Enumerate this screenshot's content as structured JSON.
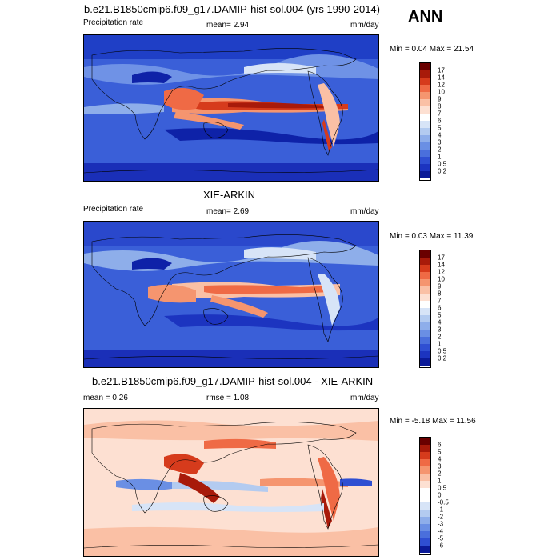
{
  "season": "ANN",
  "panels": [
    {
      "title": "b.e21.B1850cmip6.f09_g17.DAMIP-hist-sol.004 (yrs 1990-2014)",
      "left_label": "Precipitation rate",
      "stat_text": "mean=   2.94",
      "units": "mm/day",
      "minmax": "Min =   0.04 Max =  21.54",
      "levels": [
        "17",
        "14",
        "12",
        "10",
        "9",
        "8",
        "7",
        "6",
        "5",
        "4",
        "3",
        "2",
        "1",
        "0.5",
        "0.2"
      ],
      "colors": [
        "#6a0000",
        "#a81a0a",
        "#d63b1c",
        "#ef6a45",
        "#f5956f",
        "#fac0a5",
        "#fde0d2",
        "#ffffff",
        "#d7e4f7",
        "#b3cbf0",
        "#8eaeea",
        "#6a8fe4",
        "#4a6fdc",
        "#2f4fd2",
        "#1c34c0",
        "#0b1a98"
      ]
    },
    {
      "title": "XIE-ARKIN",
      "left_label": "Precipitation rate",
      "stat_text": "mean=   2.69",
      "units": "mm/day",
      "minmax": "Min =   0.03 Max =  11.39",
      "levels": [
        "17",
        "14",
        "12",
        "10",
        "9",
        "8",
        "7",
        "6",
        "5",
        "4",
        "3",
        "2",
        "1",
        "0.5",
        "0.2"
      ],
      "colors": [
        "#6a0000",
        "#a81a0a",
        "#d63b1c",
        "#ef6a45",
        "#f5956f",
        "#fac0a5",
        "#fde0d2",
        "#ffffff",
        "#d7e4f7",
        "#b3cbf0",
        "#8eaeea",
        "#6a8fe4",
        "#4a6fdc",
        "#2f4fd2",
        "#1c34c0",
        "#0b1a98"
      ]
    },
    {
      "title": "b.e21.B1850cmip6.f09_g17.DAMIP-hist-sol.004 - XIE-ARKIN",
      "left_label": "mean =   0.26",
      "stat_text": "rmse =   1.08",
      "units": "mm/day",
      "minmax": "Min =  -5.18 Max =  11.56",
      "levels": [
        "6",
        "5",
        "4",
        "3",
        "2",
        "1",
        "0.5",
        "0",
        "-0.5",
        "-1",
        "-2",
        "-3",
        "-4",
        "-5",
        "-6"
      ],
      "colors": [
        "#6a0000",
        "#a81a0a",
        "#d63b1c",
        "#ef6a45",
        "#f5956f",
        "#fac0a5",
        "#fde0d2",
        "#ffffff",
        "#ffffff",
        "#d7e4f7",
        "#b3cbf0",
        "#8eaeea",
        "#6a8fe4",
        "#4a6fdc",
        "#2f4fd2",
        "#0b1a98"
      ]
    }
  ]
}
